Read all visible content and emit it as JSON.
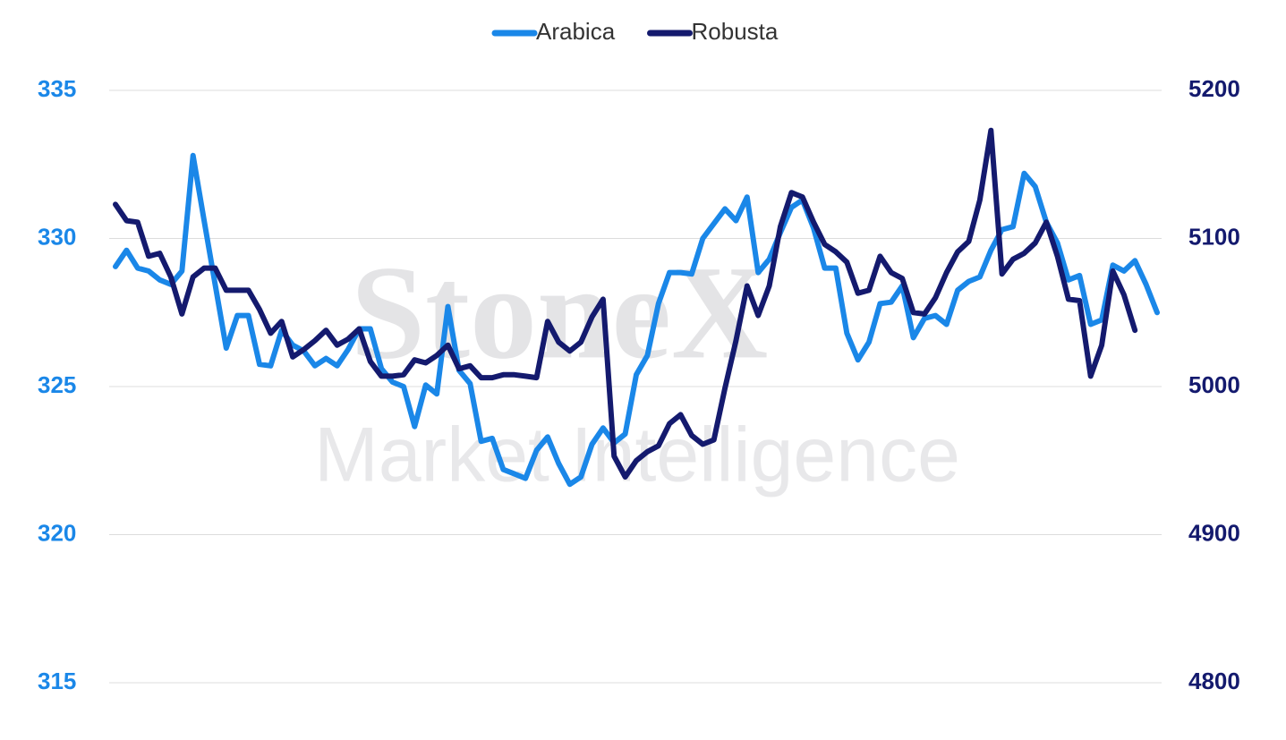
{
  "watermark": [
    "StoneX",
    "Market Intelligence"
  ],
  "chart_data": {
    "type": "line",
    "categories": [
      null,
      null,
      null,
      null,
      null,
      null,
      null,
      null,
      null,
      null,
      null,
      null,
      null,
      null,
      null,
      null,
      null,
      null,
      null,
      null,
      null,
      null,
      null,
      null,
      null,
      null,
      null,
      null,
      null,
      null,
      null,
      null,
      null,
      null,
      null,
      null,
      null,
      null,
      null,
      null,
      null,
      null,
      null,
      null,
      null,
      null,
      null,
      null,
      null,
      null,
      null,
      null,
      null,
      null,
      null,
      null,
      null,
      null,
      null,
      null,
      null,
      null,
      null,
      null,
      null,
      null,
      null,
      null,
      null,
      null,
      null,
      null,
      null,
      null,
      null,
      null,
      null,
      null,
      null,
      null,
      null,
      null,
      null,
      null,
      null,
      null,
      null,
      null,
      null,
      null,
      null,
      null,
      null,
      null,
      null
    ],
    "ylim": [
      315,
      335
    ],
    "yticks": [
      315,
      320,
      325,
      330,
      335
    ],
    "y2lim": [
      4800,
      5200
    ],
    "y2ticks": [
      4800,
      4900,
      5000,
      5100,
      5200
    ],
    "grid": true,
    "legend": "top",
    "series": [
      {
        "name": "Arabica",
        "color": "#1a87e8",
        "axis": "y",
        "values": [
          329.05,
          329.6,
          329.0,
          328.9,
          328.6,
          328.45,
          328.9,
          332.8,
          330.6,
          328.45,
          326.3,
          327.4,
          327.4,
          325.75,
          325.7,
          326.9,
          326.4,
          326.2,
          325.7,
          325.95,
          325.7,
          326.25,
          326.95,
          326.95,
          325.6,
          325.15,
          325.0,
          323.65,
          325.05,
          324.75,
          327.7,
          325.55,
          325.1,
          323.15,
          323.25,
          322.2,
          322.05,
          321.9,
          322.85,
          323.3,
          322.4,
          321.7,
          321.95,
          323.05,
          323.6,
          323.1,
          323.4,
          325.4,
          326.05,
          327.8,
          328.85,
          328.85,
          328.8,
          330.0,
          330.5,
          331.0,
          330.6,
          331.4,
          328.85,
          329.3,
          330.2,
          331.05,
          331.3,
          330.35,
          329.0,
          329.0,
          326.8,
          325.9,
          326.5,
          327.8,
          327.85,
          328.4,
          326.65,
          327.3,
          327.4,
          327.1,
          328.25,
          328.55,
          328.7,
          329.6,
          330.3,
          330.4,
          332.2,
          331.75,
          330.55,
          329.85,
          328.6,
          328.75,
          327.1,
          327.25,
          329.1,
          328.9,
          329.25,
          328.45,
          327.5
        ]
      },
      {
        "name": "Robusta",
        "color": "#141a6e",
        "axis": "y2",
        "values": [
          5123,
          5112,
          5111,
          5088,
          5090,
          5074,
          5049,
          5074,
          5080,
          5080,
          5065,
          5065,
          5065,
          5052,
          5036,
          5044,
          5020,
          5025,
          5031,
          5038,
          5028,
          5032,
          5039,
          5017,
          5007,
          5007,
          5008,
          5018,
          5016,
          5021,
          5028,
          5012,
          5014,
          5006,
          5006,
          5008,
          5008,
          5007,
          5006,
          5044,
          5030,
          5024,
          5030,
          5047,
          5059,
          4953,
          4939,
          4950,
          4956,
          4960,
          4975,
          4981,
          4967,
          4961,
          4964,
          4999,
          5031,
          5068,
          5048,
          5068,
          5108,
          5131,
          5128,
          5111,
          5096,
          5091,
          5084,
          5063,
          5065,
          5088,
          5077,
          5073,
          5050,
          5049,
          5060,
          5077,
          5091,
          5098,
          5126,
          5173,
          5076,
          5086,
          5090,
          5097,
          5111,
          5088,
          5059,
          5058,
          5007,
          5028,
          5078,
          5062,
          5038,
          null,
          null
        ]
      }
    ]
  }
}
